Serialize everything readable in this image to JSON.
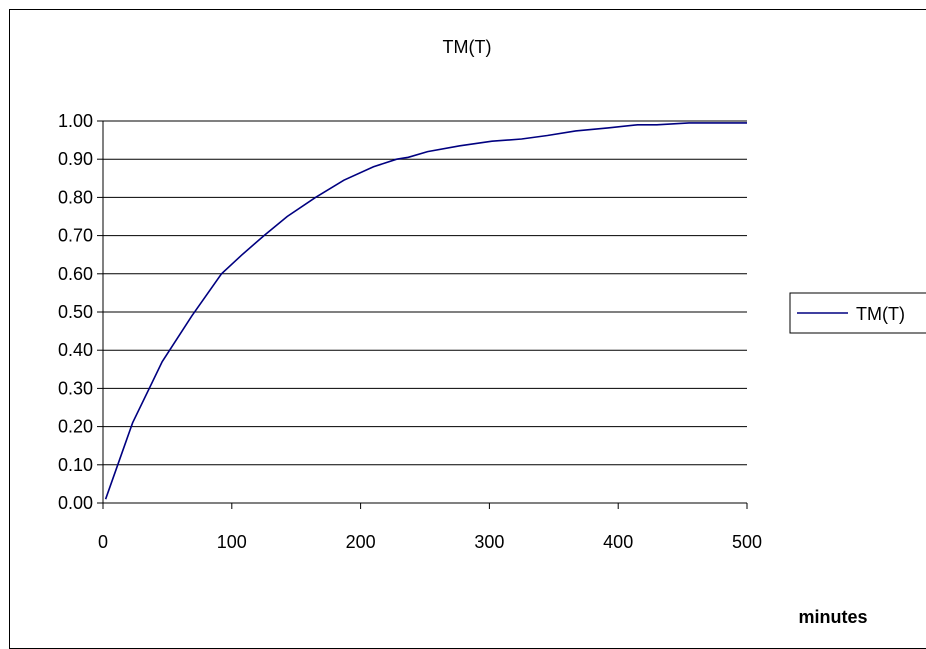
{
  "chart_data": {
    "type": "line",
    "title": "TM(T)",
    "xlabel": "minutes",
    "ylabel": "",
    "xlim": [
      0,
      500
    ],
    "ylim": [
      0,
      1
    ],
    "x_ticks": [
      "0",
      "100",
      "200",
      "300",
      "400",
      "500"
    ],
    "y_ticks": [
      "0.00",
      "0.10",
      "0.20",
      "0.30",
      "0.40",
      "0.50",
      "0.60",
      "0.70",
      "0.80",
      "0.90",
      "1.00"
    ],
    "grid": "horizontal",
    "legend": "right",
    "series": [
      {
        "name": "TM(T)",
        "color": "#000080",
        "x": [
          2,
          23,
          46,
          69,
          92,
          108,
          125,
          143,
          165,
          187,
          210,
          228,
          237,
          252,
          277,
          302,
          325,
          345,
          367,
          392,
          415,
          430,
          455,
          478,
          500
        ],
        "y": [
          0.01,
          0.21,
          0.37,
          0.49,
          0.6,
          0.65,
          0.7,
          0.75,
          0.8,
          0.845,
          0.88,
          0.9,
          0.905,
          0.92,
          0.935,
          0.947,
          0.953,
          0.962,
          0.974,
          0.982,
          0.99,
          0.99,
          0.995,
          0.995,
          0.995
        ]
      }
    ]
  }
}
